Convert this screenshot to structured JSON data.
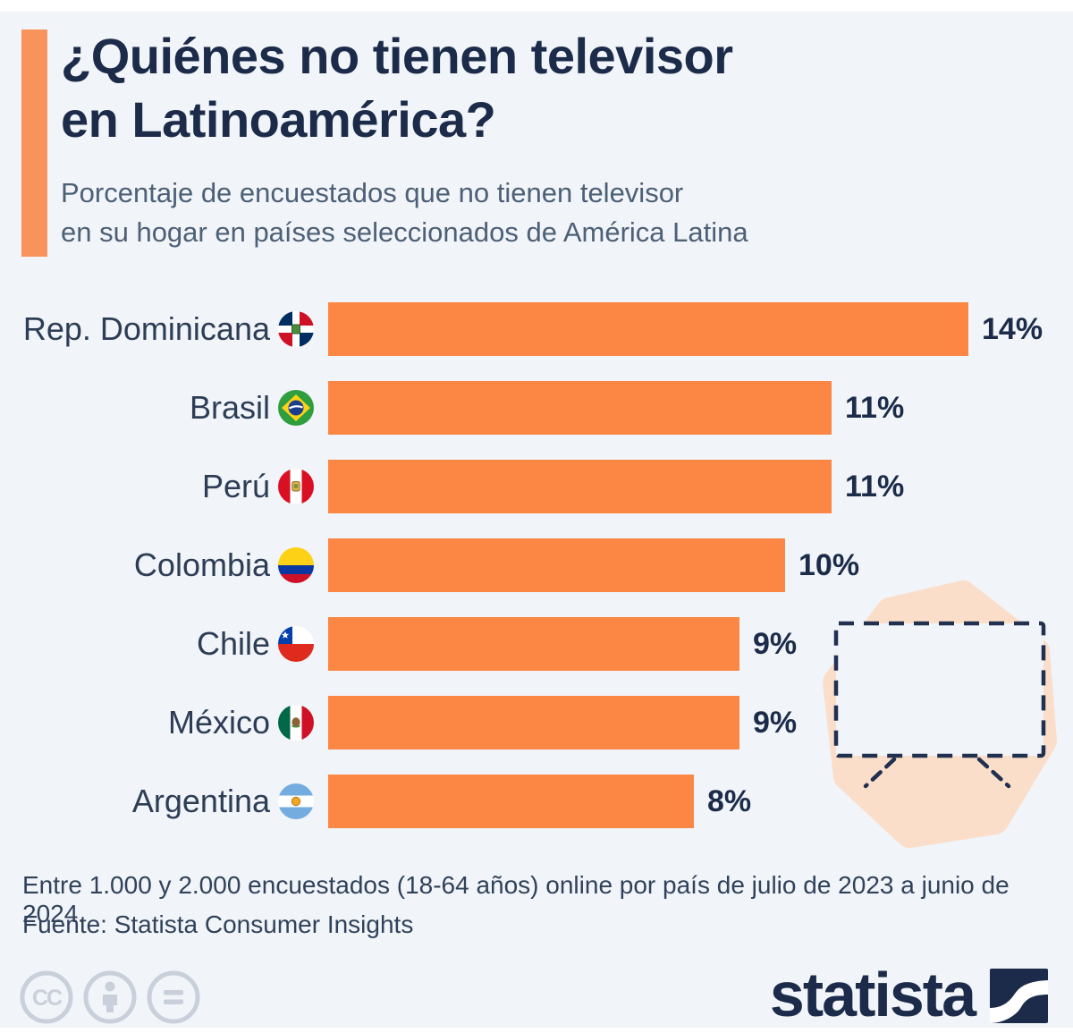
{
  "header": {
    "title_line1": "¿Quiénes no tienen televisor",
    "title_line2": "en Latinoamérica?",
    "subtitle_line1": "Porcentaje de encuestados que no tienen televisor",
    "subtitle_line2": "en su hogar en países seleccionados de América Latina"
  },
  "chart_data": {
    "type": "bar",
    "orientation": "horizontal",
    "title": "¿Quiénes no tienen televisor en Latinoamérica?",
    "subtitle": "Porcentaje de encuestados que no tienen televisor en su hogar en países seleccionados de América Latina",
    "categories": [
      "Rep. Dominicana",
      "Brasil",
      "Perú",
      "Colombia",
      "Chile",
      "México",
      "Argentina"
    ],
    "values": [
      14,
      11,
      11,
      10,
      9,
      9,
      8
    ],
    "value_labels": [
      "14%",
      "11%",
      "11%",
      "10%",
      "9%",
      "9%",
      "8%"
    ],
    "unit": "%",
    "xlim": [
      0,
      14
    ],
    "grid": false,
    "legend": "none",
    "flags": [
      "dominican-republic",
      "brazil",
      "peru",
      "colombia",
      "chile",
      "mexico",
      "argentina"
    ],
    "bar_color": "#FC8745"
  },
  "footer": {
    "note": "Entre 1.000 y 2.000 encuestados (18-64 años) online por país de julio de 2023 a junio de 2024.",
    "source": "Fuente: Statista Consumer Insights"
  },
  "branding": {
    "logo_text": "statista",
    "license_icons": [
      "cc-icon",
      "attribution-icon",
      "equal-icon"
    ]
  },
  "colors": {
    "background": "#F1F4F8",
    "accent_bar": "#F8935C",
    "bar": "#FC8745",
    "title": "#1B2B49",
    "subtitle": "#4D6077",
    "label": "#2C3D55",
    "footer_text": "#30425B",
    "blob": "#FBDECA",
    "tv_outline": "#20304E",
    "license_icon_gray": "#C9D0DB"
  }
}
